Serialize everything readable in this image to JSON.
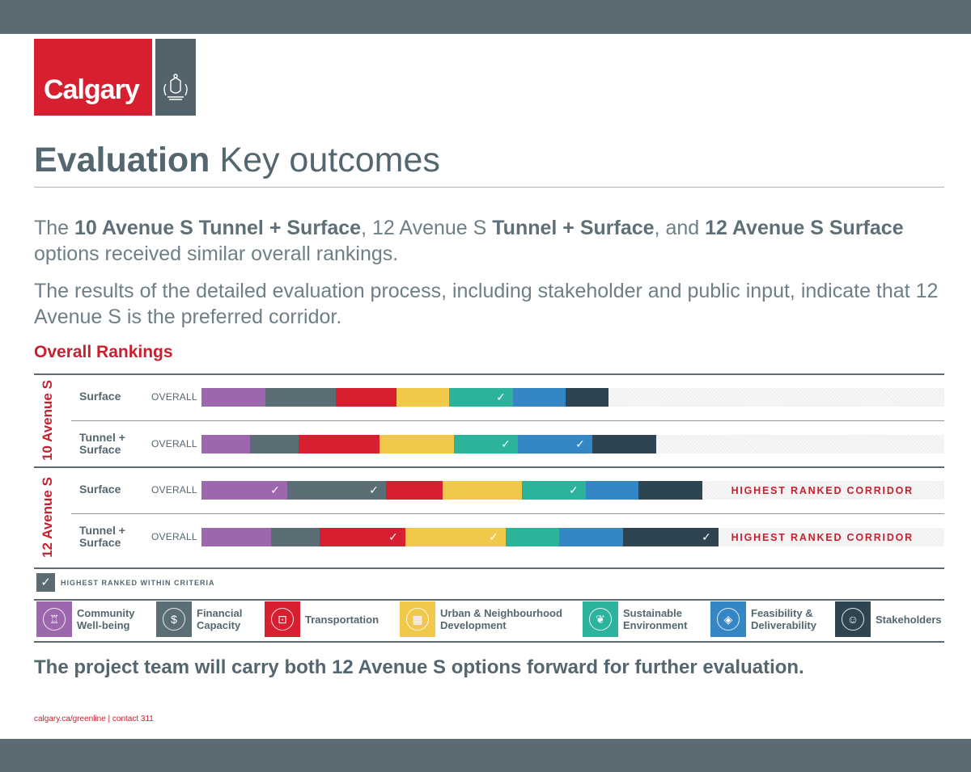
{
  "header": {
    "logo_text": "Calgary"
  },
  "title": {
    "bold": "Evaluation",
    "light": "Key outcomes"
  },
  "intro": {
    "p1": [
      {
        "text": "The ",
        "b": false
      },
      {
        "text": "10 Avenue S Tunnel + Surface",
        "b": true
      },
      {
        "text": ", 12 Avenue S ",
        "b": false
      },
      {
        "text": "Tunnel + Surface",
        "b": true
      },
      {
        "text": ", and ",
        "b": false
      },
      {
        "text": "12 Avenue S Surface",
        "b": true
      },
      {
        "text": " options received similar overall rankings.",
        "b": false
      }
    ],
    "p2": "The results of the detailed evaluation process, including stakeholder and public input, indicate that 12 Avenue S is the preferred corridor."
  },
  "section_title": "Overall Rankings",
  "colors": {
    "community": "#9c67ac",
    "financial": "#5b6d75",
    "transportation": "#d71f30",
    "urban": "#f0c94a",
    "sustainable": "#2db39c",
    "feasibility": "#3586c4",
    "stakeholders": "#2e4450",
    "accent": "#c8202f"
  },
  "chart_data": {
    "type": "bar",
    "stacked": true,
    "orientation": "horizontal",
    "groups": [
      {
        "name": "10 Avenue S",
        "rows": [
          {
            "name": "Surface",
            "label": "OVERALL",
            "highlight": "",
            "segments": [
              {
                "criterion": "community",
                "value": 79,
                "best": false
              },
              {
                "criterion": "financial",
                "value": 87,
                "best": false
              },
              {
                "criterion": "transportation",
                "value": 75,
                "best": false
              },
              {
                "criterion": "urban",
                "value": 65,
                "best": false
              },
              {
                "criterion": "sustainable",
                "value": 79,
                "best": true
              },
              {
                "criterion": "feasibility",
                "value": 65,
                "best": false
              },
              {
                "criterion": "stakeholders",
                "value": 53,
                "best": false
              }
            ]
          },
          {
            "name": "Tunnel + Surface",
            "label": "OVERALL",
            "highlight": "",
            "segments": [
              {
                "criterion": "community",
                "value": 60,
                "best": false
              },
              {
                "criterion": "financial",
                "value": 60,
                "best": false
              },
              {
                "criterion": "transportation",
                "value": 100,
                "best": false
              },
              {
                "criterion": "urban",
                "value": 92,
                "best": false
              },
              {
                "criterion": "sustainable",
                "value": 79,
                "best": true
              },
              {
                "criterion": "feasibility",
                "value": 92,
                "best": true
              },
              {
                "criterion": "stakeholders",
                "value": 79,
                "best": false
              }
            ]
          }
        ]
      },
      {
        "name": "12 Avenue S",
        "rows": [
          {
            "name": "Surface",
            "label": "OVERALL",
            "highlight": "HIGHEST RANKED CORRIDOR",
            "segments": [
              {
                "criterion": "community",
                "value": 106,
                "best": true
              },
              {
                "criterion": "financial",
                "value": 122,
                "best": true
              },
              {
                "criterion": "transportation",
                "value": 70,
                "best": false
              },
              {
                "criterion": "urban",
                "value": 98,
                "best": false
              },
              {
                "criterion": "sustainable",
                "value": 79,
                "best": true
              },
              {
                "criterion": "feasibility",
                "value": 65,
                "best": false
              },
              {
                "criterion": "stakeholders",
                "value": 79,
                "best": false
              }
            ]
          },
          {
            "name": "Tunnel + Surface",
            "label": "OVERALL",
            "highlight": "HIGHEST RANKED CORRIDOR",
            "segments": [
              {
                "criterion": "community",
                "value": 86,
                "best": false
              },
              {
                "criterion": "financial",
                "value": 60,
                "best": false
              },
              {
                "criterion": "transportation",
                "value": 106,
                "best": true
              },
              {
                "criterion": "urban",
                "value": 124,
                "best": true
              },
              {
                "criterion": "sustainable",
                "value": 66,
                "best": false
              },
              {
                "criterion": "feasibility",
                "value": 79,
                "best": false
              },
              {
                "criterion": "stakeholders",
                "value": 118,
                "best": true
              }
            ]
          }
        ]
      }
    ],
    "xlim": [
      0,
      918
    ]
  },
  "legend": {
    "check_label": "HIGHEST RANKED WITHIN CRITERIA",
    "criteria": [
      {
        "key": "community",
        "name": "Community Well-being",
        "line1": "Community",
        "line2": "Well-being",
        "icon": "community-icon",
        "glyph": "♖"
      },
      {
        "key": "financial",
        "name": "Financial Capacity",
        "line1": "Financial",
        "line2": "Capacity",
        "icon": "dollar-icon",
        "glyph": "$"
      },
      {
        "key": "transportation",
        "name": "Transportation",
        "line1": "Transportation",
        "line2": "",
        "icon": "train-icon",
        "glyph": "⊡"
      },
      {
        "key": "urban",
        "name": "Urban & Neighbourhood Development",
        "line1": "Urban & Neighbourhood",
        "line2": "Development",
        "icon": "building-icon",
        "glyph": "▦"
      },
      {
        "key": "sustainable",
        "name": "Sustainable Environment",
        "line1": "Sustainable",
        "line2": "Environment",
        "icon": "leaf-icon",
        "glyph": "❦"
      },
      {
        "key": "feasibility",
        "name": "Feasibility & Deliverability",
        "line1": "Feasibility &",
        "line2": "Deliverability",
        "icon": "handshake-icon",
        "glyph": "◈"
      },
      {
        "key": "stakeholders",
        "name": "Stakeholders",
        "line1": "Stakeholders",
        "line2": "",
        "icon": "person-icon",
        "glyph": "☺"
      }
    ]
  },
  "closing": "The project team will carry both 12 Avenue S options forward for further evaluation.",
  "footer": "calgary.ca/greenline | contact 311"
}
